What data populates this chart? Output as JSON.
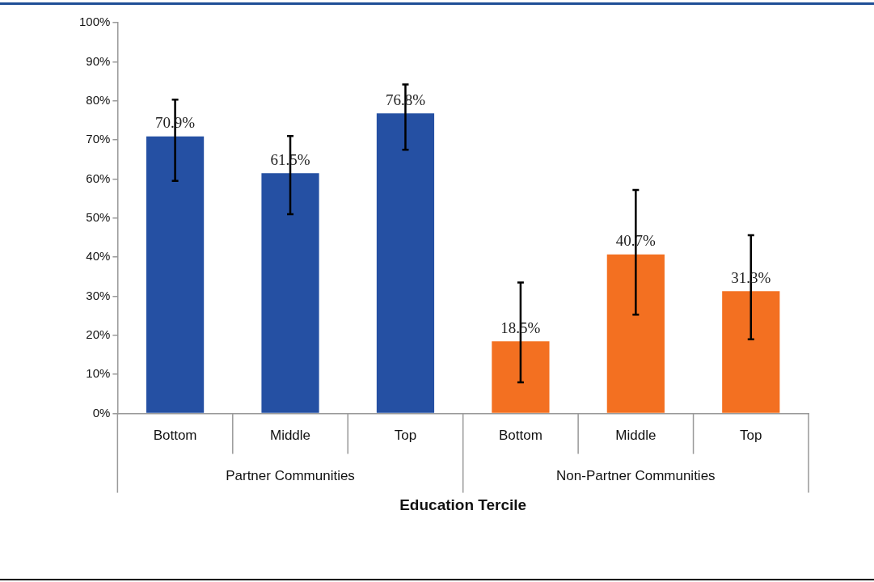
{
  "chart_data": {
    "type": "bar",
    "xlabel": "Education Tercile",
    "categories": [
      "Bottom",
      "Middle",
      "Top",
      "Bottom",
      "Middle",
      "Top"
    ],
    "values": [
      70.9,
      61.5,
      76.8,
      18.5,
      40.7,
      31.3
    ],
    "colors": [
      "#2550a3",
      "#2550a3",
      "#2550a3",
      "#f37021",
      "#f37021",
      "#f37021"
    ],
    "errors": [
      [
        59.5,
        80.3
      ],
      [
        51,
        71
      ],
      [
        67.5,
        84.2
      ],
      [
        8,
        33.5
      ],
      [
        25.3,
        57.2
      ],
      [
        19,
        45.6
      ]
    ],
    "value_labels": [
      "70.9%",
      "61.5%",
      "76.8%",
      "18.5%",
      "40.7%",
      "31.3%"
    ],
    "annotations": [
      "Partner Communities",
      "Non-Partner Communities"
    ],
    "ylim": [
      0,
      100
    ],
    "yticks": [
      {
        "value": 0,
        "label": "0%"
      },
      {
        "value": 10,
        "label": "10%"
      },
      {
        "value": 20,
        "label": "20%"
      },
      {
        "value": 30,
        "label": "30%"
      },
      {
        "value": 40,
        "label": "40%"
      },
      {
        "value": 50,
        "label": "50%"
      },
      {
        "value": 60,
        "label": "60%"
      },
      {
        "value": 70,
        "label": "70%"
      },
      {
        "value": 80,
        "label": "80%"
      },
      {
        "value": 90,
        "label": "90%"
      },
      {
        "value": 100,
        "label": "100%"
      }
    ],
    "grid": false,
    "legend": false
  }
}
